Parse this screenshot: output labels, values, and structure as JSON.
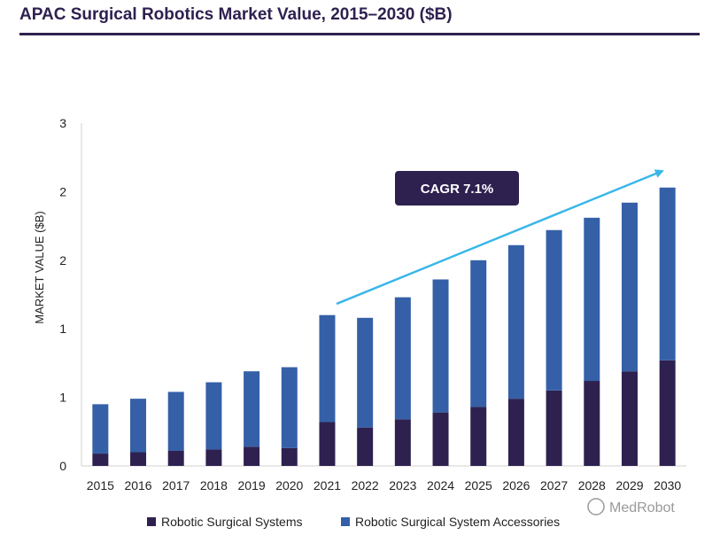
{
  "chart_data": {
    "type": "bar",
    "stacked": true,
    "title": "APAC Surgical Robotics Market Value, 2015–2030 ($B)",
    "xlabel": "",
    "ylabel": "MARKET VALUE ($B)",
    "ylim": [
      0,
      2.5
    ],
    "y_tick_values": [
      0,
      0.5,
      1.0,
      1.5,
      2.0,
      2.5
    ],
    "y_tick_labels": [
      "0",
      "1",
      "1",
      "2",
      "2",
      "3"
    ],
    "grid": false,
    "legend_position": "bottom",
    "categories": [
      "2015",
      "2016",
      "2017",
      "2018",
      "2019",
      "2020",
      "2021",
      "2022",
      "2023",
      "2024",
      "2025",
      "2026",
      "2027",
      "2028",
      "2029",
      "2030"
    ],
    "series": [
      {
        "name": "Robotic Surgical Systems",
        "color": "#2e2150",
        "values": [
          0.09,
          0.1,
          0.11,
          0.12,
          0.14,
          0.13,
          0.32,
          0.28,
          0.34,
          0.39,
          0.43,
          0.49,
          0.55,
          0.62,
          0.69,
          0.77
        ]
      },
      {
        "name": "Robotic Surgical System Accessories",
        "color": "#3560a8",
        "values": [
          0.36,
          0.39,
          0.43,
          0.49,
          0.55,
          0.59,
          0.78,
          0.8,
          0.89,
          0.97,
          1.07,
          1.12,
          1.17,
          1.19,
          1.23,
          1.26
        ]
      }
    ],
    "annotations": [
      {
        "text": "CAGR 7.1%",
        "from_year": "2021",
        "to_year": "2030"
      }
    ]
  },
  "watermark": "MedRobot"
}
